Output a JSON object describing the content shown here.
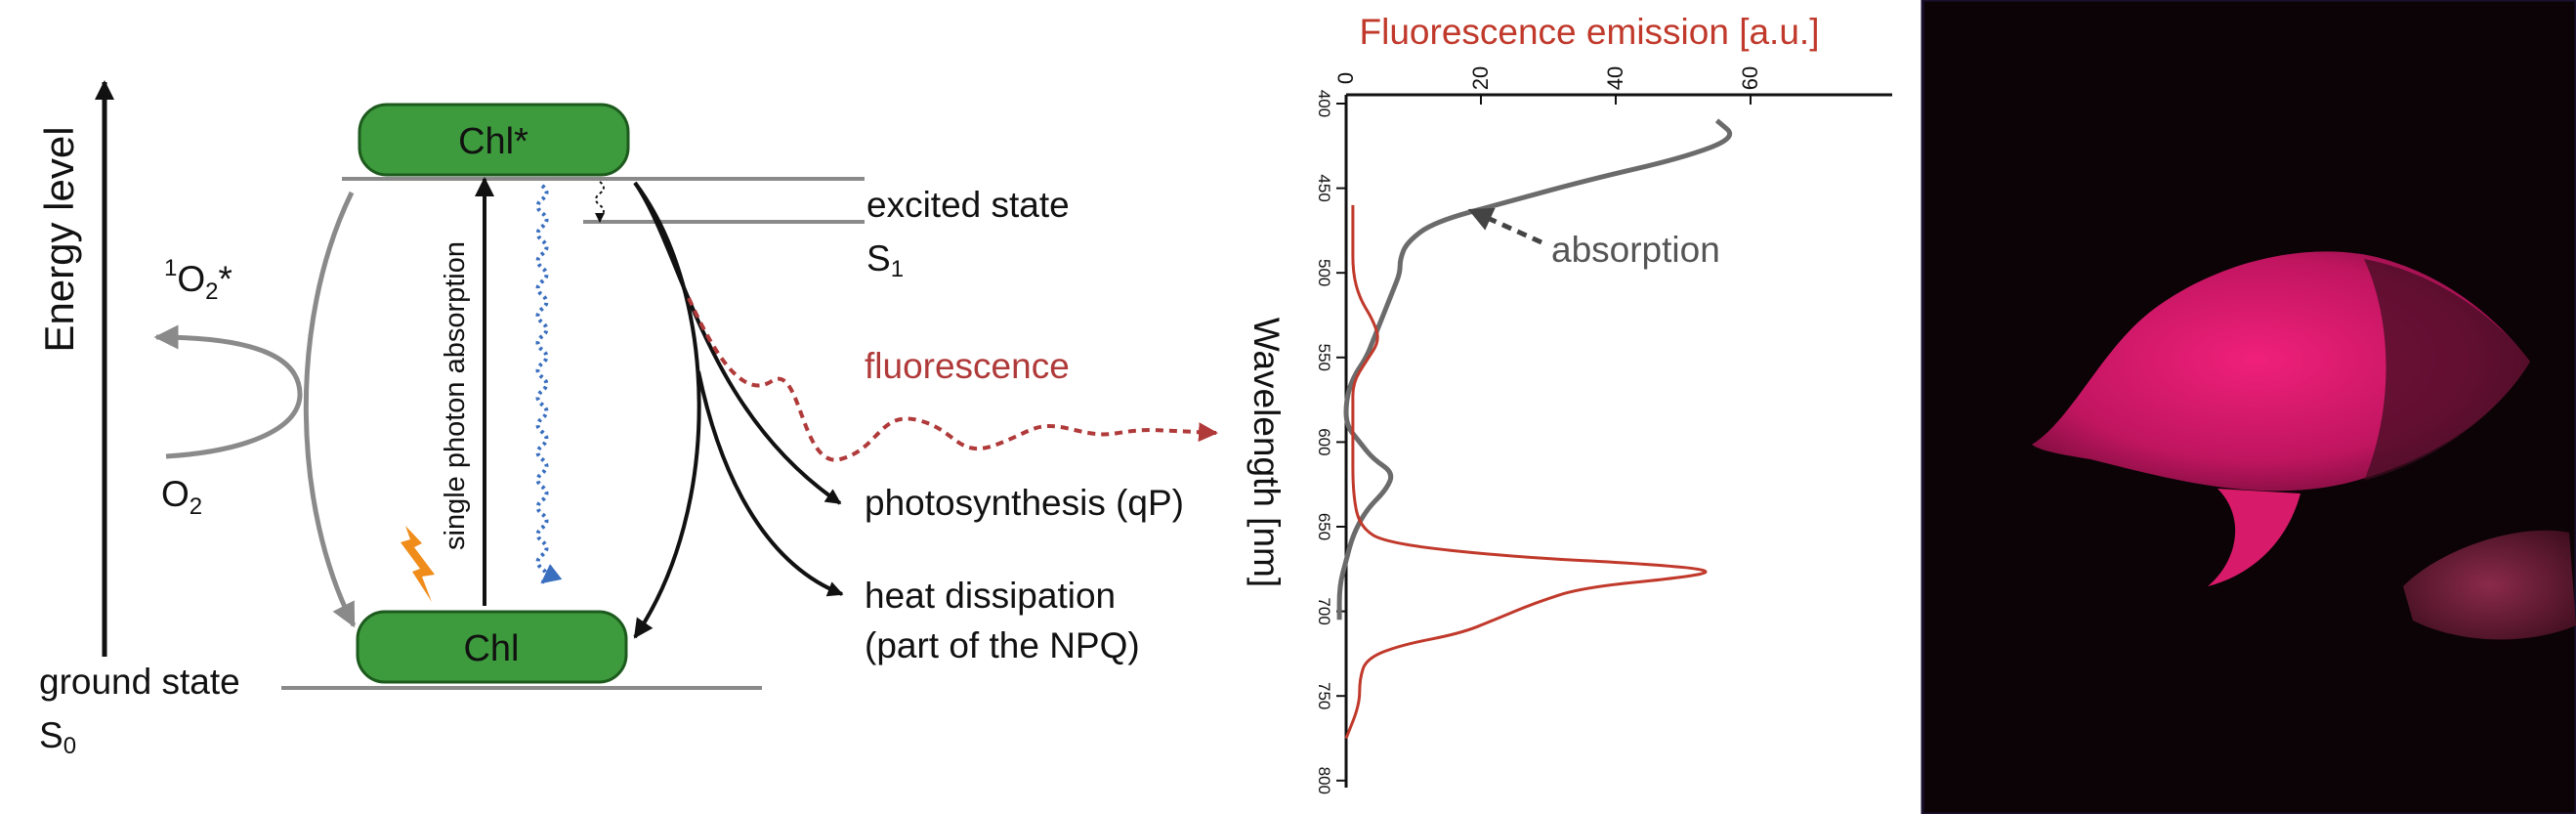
{
  "jablonski": {
    "axis_label": "Energy level",
    "excited_box": "Chl*",
    "ground_box": "Chl",
    "excited_state": "excited state",
    "s1_main": "S",
    "s1_sub": "1",
    "ground_state": "ground state",
    "s0_main": "S",
    "s0_sub": "0",
    "singlet_oxygen_sup": "1",
    "singlet_oxygen_main": "O",
    "singlet_oxygen_sub": "2",
    "singlet_oxygen_star": "*",
    "oxygen_main": "O",
    "oxygen_sub": "2",
    "absorption_label": "single photon absorption",
    "fluorescence_label": "fluorescence",
    "photosynthesis_label": "photosynthesis (qP)",
    "heat_line1": "heat dissipation",
    "heat_line2": "(part of the NPQ)",
    "colors": {
      "box_fill": "#3d9b3d",
      "fluorescence": "#b03a3a",
      "wavy_blue": "#3a6fbf",
      "lightning": "#f08c1a",
      "gray_arrow": "#8a8a8a"
    }
  },
  "chart_data": {
    "type": "line",
    "title": "Fluorescence emission [a.u.]",
    "xlabel": "Fluorescence emission [a.u.]",
    "ylabel": "Wavelength [nm]",
    "orientation": "rotated",
    "xlim": [
      0,
      80
    ],
    "ylim": [
      400,
      800
    ],
    "x_ticks": [
      "0",
      "20",
      "40",
      "60"
    ],
    "y_ticks": [
      "400",
      "450",
      "500",
      "550",
      "600",
      "650",
      "700",
      "750",
      "800"
    ],
    "annotation": "absorption",
    "series": [
      {
        "name": "absorption",
        "color": "#6b6b6b",
        "wavelength": [
          410,
          420,
          432,
          445,
          458,
          470,
          482,
          492,
          500,
          510,
          520,
          530,
          540,
          550,
          562,
          575,
          590,
          600,
          610,
          618,
          628,
          640,
          655,
          670,
          685,
          705
        ],
        "value": [
          55,
          58,
          50,
          36,
          24,
          13,
          9,
          8,
          8,
          7,
          6,
          5,
          4,
          3,
          1,
          0,
          0,
          2,
          4,
          7,
          6,
          3,
          1,
          0,
          -1,
          -1
        ]
      },
      {
        "name": "fluorescence",
        "color": "#c0392b",
        "wavelength": [
          460,
          480,
          500,
          515,
          528,
          540,
          552,
          565,
          580,
          600,
          630,
          650,
          660,
          668,
          672,
          676,
          680,
          686,
          695,
          705,
          713,
          720,
          728,
          740,
          755,
          775
        ],
        "value": [
          1,
          1,
          1,
          2,
          4,
          5,
          3,
          1,
          1,
          1,
          1,
          2,
          6,
          25,
          45,
          55,
          50,
          35,
          28,
          22,
          17,
          8,
          3,
          2,
          2,
          0
        ]
      }
    ]
  }
}
